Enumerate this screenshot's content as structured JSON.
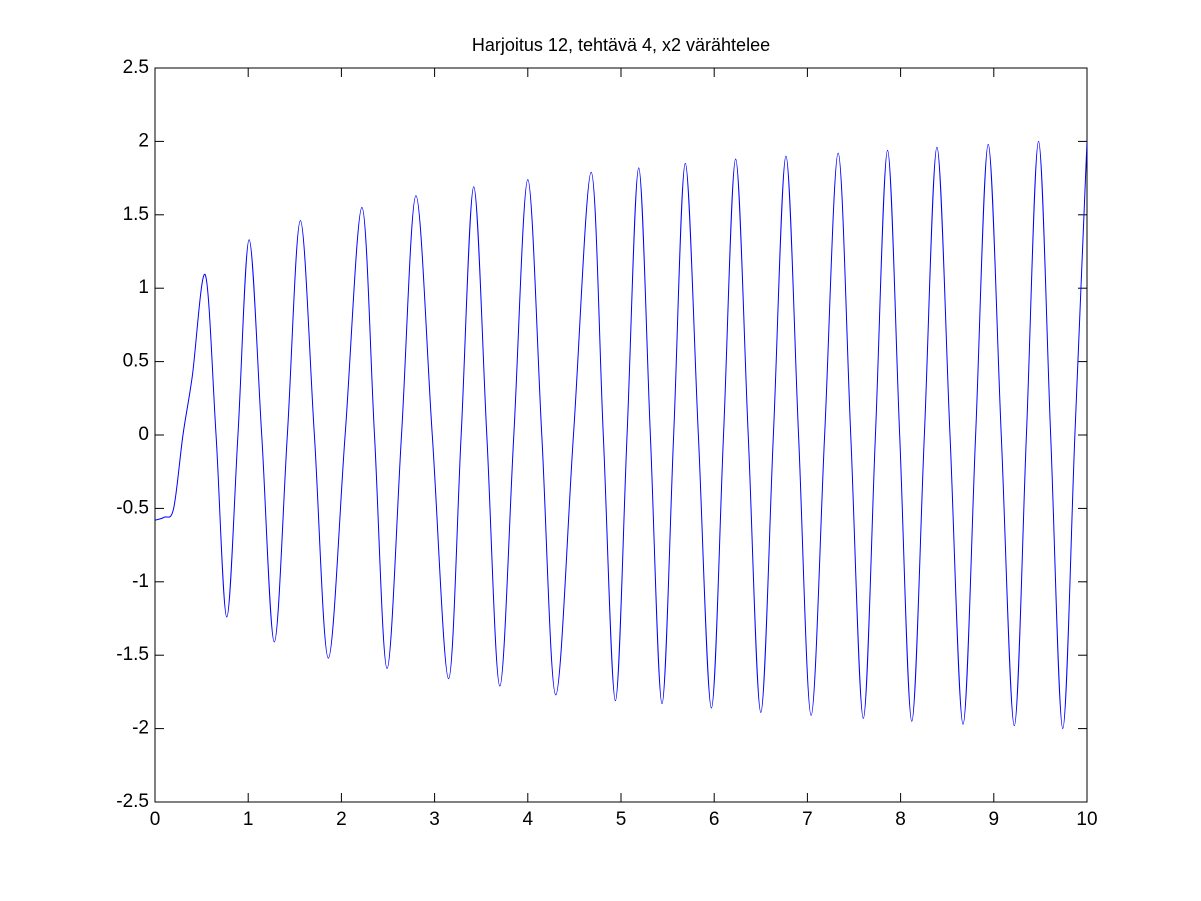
{
  "chart_data": {
    "type": "line",
    "title": "Harjoitus 12, tehtävä 4, x2 värähtelee",
    "x": [
      0,
      0.1,
      0.2,
      0.3,
      0.4,
      0.54,
      0.655,
      0.77,
      0.89,
      1.01,
      1.145,
      1.28,
      1.42,
      1.56,
      1.71,
      1.86,
      2.04,
      2.22,
      2.355,
      2.49,
      2.645,
      2.8,
      2.975,
      3.15,
      3.285,
      3.42,
      3.56,
      3.7,
      3.85,
      4.0,
      4.15,
      4.3,
      4.49,
      4.68,
      4.81,
      4.94,
      5.065,
      5.19,
      5.315,
      5.44,
      5.565,
      5.69,
      5.83,
      5.97,
      6.1,
      6.23,
      6.365,
      6.5,
      6.635,
      6.77,
      6.905,
      7.04,
      7.185,
      7.33,
      7.465,
      7.6,
      7.73,
      7.86,
      7.99,
      8.12,
      8.255,
      8.39,
      8.53,
      8.67,
      8.805,
      8.94,
      9.08,
      9.22,
      9.35,
      9.48,
      9.61,
      9.74,
      9.87,
      10
    ],
    "series": [
      {
        "color": "#0000ff",
        "values": [
          -0.58,
          -0.56,
          -0.5,
          0,
          0.4,
          1.09,
          0,
          -1.24,
          0,
          1.33,
          0,
          -1.41,
          0,
          1.46,
          0,
          -1.52,
          0,
          1.55,
          0,
          -1.59,
          0,
          1.63,
          0,
          -1.66,
          0,
          1.69,
          0,
          -1.71,
          0,
          1.74,
          0,
          -1.77,
          0,
          1.79,
          0,
          -1.81,
          0,
          1.82,
          0,
          -1.83,
          0,
          1.85,
          0,
          -1.86,
          0,
          1.88,
          0,
          -1.89,
          0,
          1.9,
          0,
          -1.91,
          0,
          1.92,
          0,
          -1.93,
          0,
          1.94,
          0,
          -1.95,
          0,
          1.96,
          0,
          -1.97,
          0,
          1.98,
          0,
          -1.98,
          0,
          2.0,
          0,
          -2.0,
          0,
          2.0
        ]
      }
    ],
    "xlim": [
      0,
      10
    ],
    "xticks": [
      0,
      1,
      2,
      3,
      4,
      5,
      6,
      7,
      8,
      9,
      10
    ],
    "ylim": [
      -2.5,
      2.5
    ],
    "yticks": [
      -2.5,
      -2,
      -1.5,
      -1,
      -0.5,
      0,
      0.5,
      1,
      1.5,
      2,
      2.5
    ]
  }
}
